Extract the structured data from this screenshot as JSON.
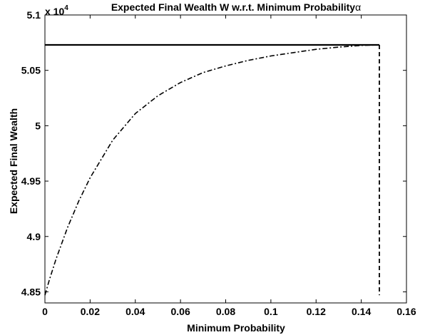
{
  "chart_data": {
    "type": "line",
    "title": "Expected Final Wealth W w.r.t. Minimum Probability",
    "title_symbol": "α",
    "xlabel": "Minimum Probability",
    "ylabel": "Expected Final Wealth",
    "y_exponent_label": "x 10",
    "y_exponent_power": "4",
    "xlim": [
      0,
      0.16
    ],
    "ylim": [
      48400,
      51000
    ],
    "xticks": [
      "0",
      "0.02",
      "0.04",
      "0.06",
      "0.08",
      "0.1",
      "0.12",
      "0.14",
      "0.16"
    ],
    "xtick_values": [
      0,
      0.02,
      0.04,
      0.06,
      0.08,
      0.1,
      0.12,
      0.14,
      0.16
    ],
    "yticks": [
      "4.85",
      "4.9",
      "4.95",
      "5",
      "5.05",
      "5.1"
    ],
    "ytick_values": [
      48500,
      49000,
      49500,
      50000,
      50500,
      51000
    ],
    "grid": false,
    "colors": {
      "line": "#000000"
    },
    "series": [
      {
        "style": "solid",
        "x": [
          0,
          0.148
        ],
        "y": [
          50730,
          50730
        ]
      },
      {
        "style": "dashdot",
        "x": [
          0,
          0.002,
          0.005,
          0.01,
          0.015,
          0.02,
          0.03,
          0.04,
          0.05,
          0.06,
          0.07,
          0.08,
          0.09,
          0.1,
          0.11,
          0.12,
          0.13,
          0.14,
          0.148
        ],
        "y": [
          48470,
          48610,
          48800,
          49080,
          49320,
          49530,
          49870,
          50110,
          50270,
          50390,
          50480,
          50540,
          50590,
          50630,
          50660,
          50690,
          50710,
          50725,
          50730
        ]
      },
      {
        "style": "dashed",
        "x": [
          0.148,
          0.148
        ],
        "y": [
          50730,
          48470
        ]
      }
    ]
  }
}
